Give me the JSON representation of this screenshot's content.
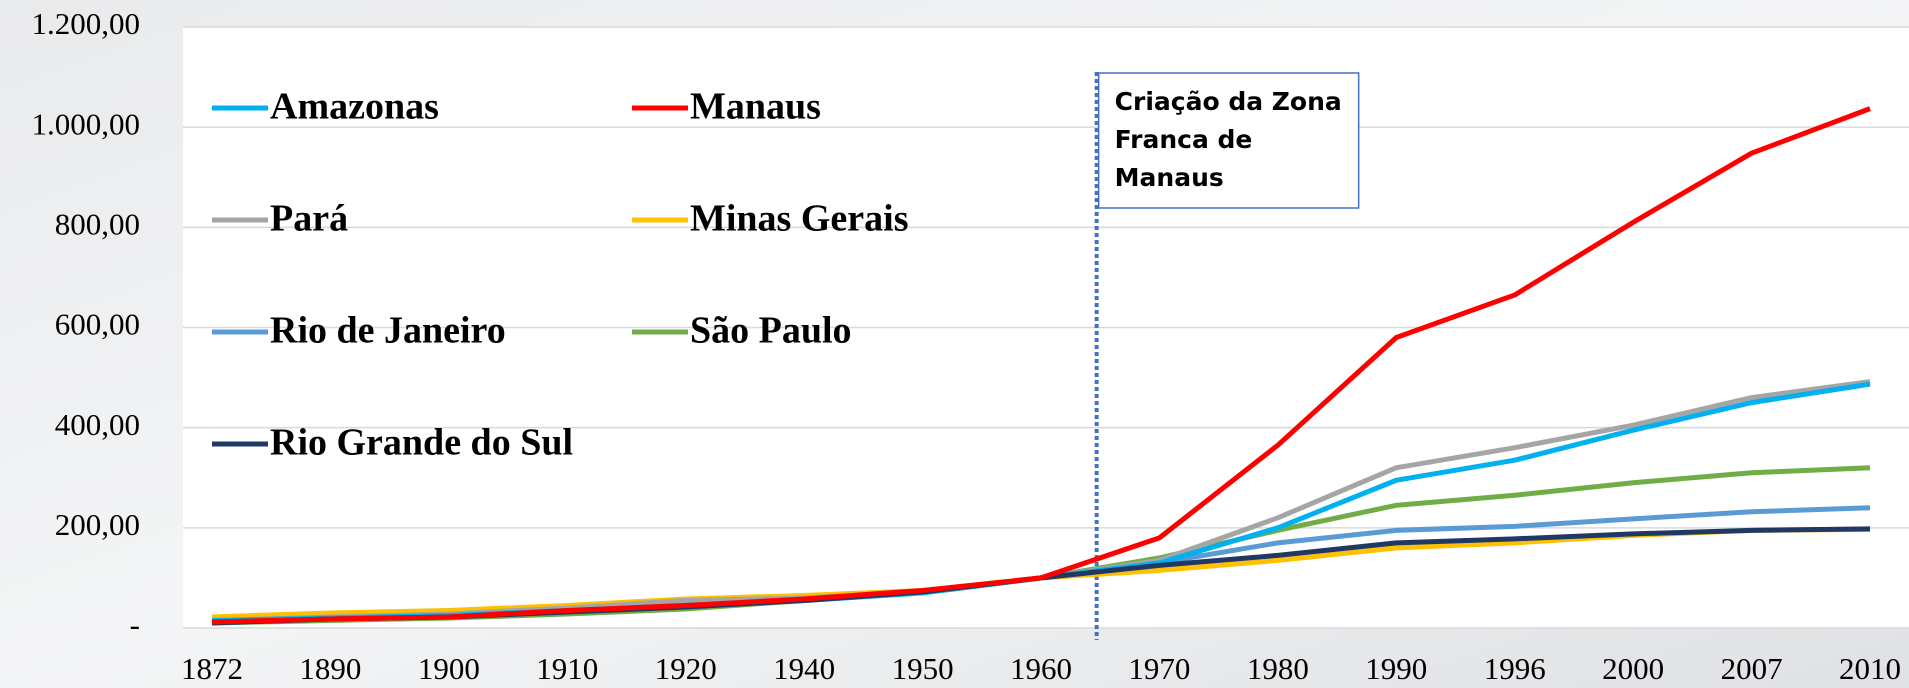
{
  "chart_data": {
    "type": "line",
    "annotation": [
      "Criação da Zona",
      "Franca de",
      "Manaus"
    ],
    "categories": [
      "1872",
      "1890",
      "1900",
      "1910",
      "1920",
      "1940",
      "1950",
      "1960",
      "1970",
      "1980",
      "1990",
      "1996",
      "2000",
      "2007",
      "2010"
    ],
    "series": [
      {
        "name": "Amazonas",
        "color": "#00b0f0",
        "values": [
          15,
          20,
          25,
          35,
          45,
          55,
          70,
          100,
          130,
          200,
          295,
          335,
          395,
          450,
          487
        ]
      },
      {
        "name": "Manaus",
        "color": "#ff0000",
        "values": [
          12,
          18,
          22,
          35,
          45,
          58,
          75,
          100,
          180,
          365,
          580,
          665,
          810,
          948,
          1037
        ]
      },
      {
        "name": "Pará",
        "color": "#a5a5a5",
        "values": [
          15,
          22,
          28,
          40,
          55,
          60,
          72,
          100,
          135,
          220,
          320,
          360,
          405,
          460,
          492
        ]
      },
      {
        "name": "Minas Gerais",
        "color": "#ffc000",
        "values": [
          22,
          30,
          35,
          45,
          58,
          65,
          75,
          100,
          115,
          135,
          160,
          170,
          185,
          195,
          197
        ]
      },
      {
        "name": "Rio de Janeiro",
        "color": "#5b9bd5",
        "values": [
          15,
          20,
          25,
          38,
          48,
          58,
          72,
          100,
          130,
          170,
          195,
          203,
          218,
          232,
          240
        ]
      },
      {
        "name": "São Paulo",
        "color": "#70ad47",
        "values": [
          10,
          15,
          20,
          28,
          38,
          55,
          70,
          100,
          140,
          195,
          245,
          265,
          290,
          310,
          320
        ]
      },
      {
        "name": "Rio Grande do Sul",
        "color": "#203864",
        "values": [
          10,
          18,
          22,
          32,
          42,
          55,
          72,
          100,
          125,
          145,
          170,
          178,
          188,
          195,
          198
        ]
      }
    ],
    "ylim": [
      0,
      1200
    ],
    "yticks": [
      {
        "value": 0,
        "label": "-"
      },
      {
        "value": 200,
        "label": "200,00"
      },
      {
        "value": 400,
        "label": "400,00"
      },
      {
        "value": 600,
        "label": "600,00"
      },
      {
        "value": 800,
        "label": "800,00"
      },
      {
        "value": 1000,
        "label": "1.000,00"
      },
      {
        "value": 1200,
        "label": "1.200,00"
      }
    ],
    "grid": true
  }
}
